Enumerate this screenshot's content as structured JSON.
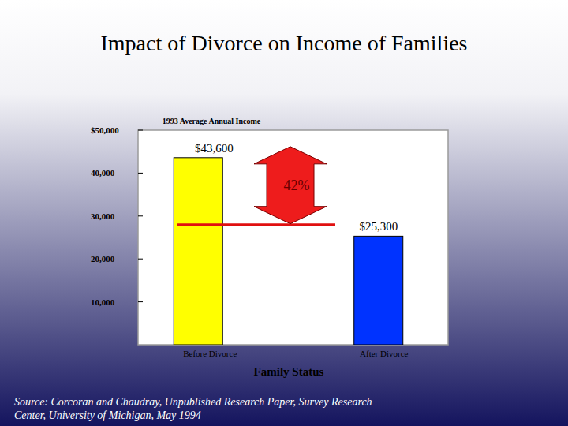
{
  "chart_data": {
    "type": "bar",
    "title": "Impact of Divorce on Income of Families",
    "subtitle": "1993 Average Annual Income",
    "x_label": "Family Status",
    "categories": [
      "Before Divorce",
      "After Divorce"
    ],
    "values": [
      43600,
      25300
    ],
    "value_labels": [
      "$43,600",
      "$25,300"
    ],
    "data_labels": true,
    "colors": [
      "#ffff00",
      "#0033ff"
    ],
    "ylim": [
      0,
      50000
    ],
    "yticks": [
      {
        "value": 10000,
        "label": "10,000"
      },
      {
        "value": 20000,
        "label": "20,000"
      },
      {
        "value": 30000,
        "label": "30,000"
      },
      {
        "value": 40000,
        "label": "40,000"
      },
      {
        "value": 50000,
        "label": "$50,000"
      }
    ],
    "grid": false,
    "reference_line": 28000,
    "annotation": "42%",
    "source": "Source: Corcoran and Chaudray, Unpublished Research Paper, Survey Research Center, University of Michigan, May 1994"
  }
}
